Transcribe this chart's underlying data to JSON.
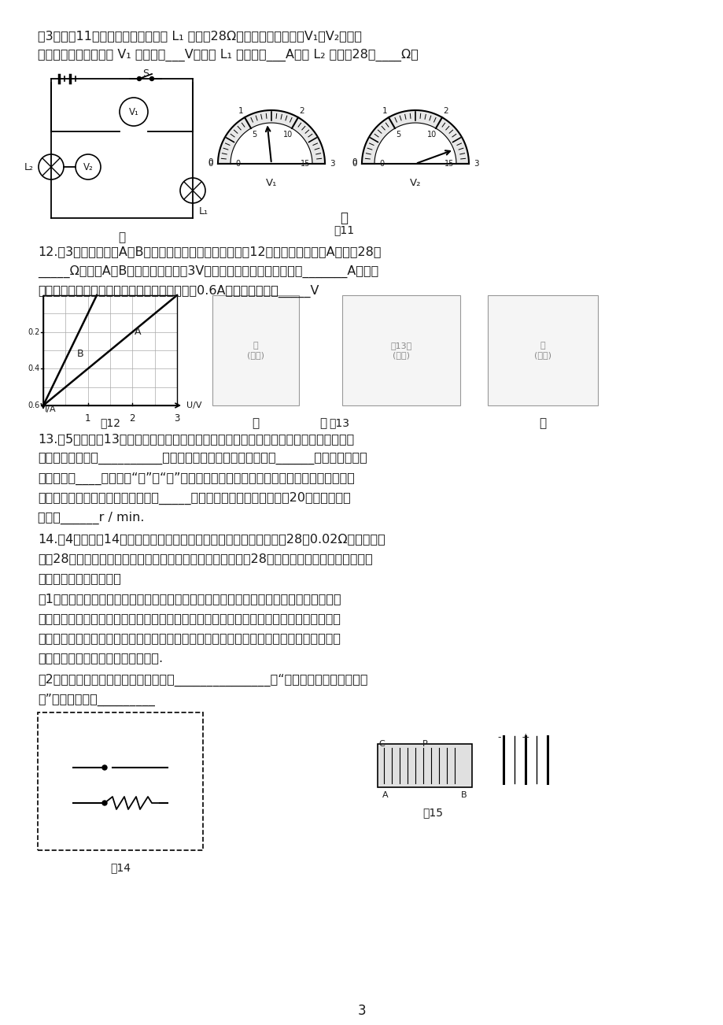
{
  "page_width": 9.2,
  "page_height": 13.02,
  "dpi": 100,
  "bg_color": "#ffffff",
  "text_color": "#1a1a1a",
  "page_number": "3",
  "section3_line1": "（3）如图11甲所示的电路中，电灯 L₁ 的电阶28Ω，开关闭合后，电压V₁、V₂的示数",
  "section3_line2": "分别如图乙，则电压表 V₁ 的示数为___V，，灯 L₁ 的电流为___A，灯 L₂ 的电阶28为____Ω。",
  "q12_line1": "12.（3分）电路元件A和B中的电流与两端电压的关系如图12所示，由图可知，A的电阶28是",
  "q12_line2": "_____Ω。若将A、B串联后接在电压为3V的电源两端，电路中的电流是_______A。若把",
  "q12_line3": "它们并联起来，接在某电源上，电路中的电流是0.6A，则电源电压是_____V",
  "q13_line1": "13.（5分）如图13甲所示装置，向盒内滴入数滴酒精，再将盒盖盖紧，然后拨动电火花发",
  "q13_line2": "生器的按鈕，看到__________，在此过程中，酒精燃烧后燃气的______能转化为盒盖的",
  "q13_line3": "机械能。图____中（选填“乙”或“丙”）汽油机的工作过程与这一实验过程中能量的转化是",
  "q13_line4": "一致的，而图示的另一个工作过程叫_____冲程。如果汽油机每秒钟做功20次，则该机飞",
  "q13_line5": "轮转速______r / min.",
  "q14_line1": "14.（4分）如图14，长距离输电需要两条输电线，每米输电线的电阶28是0.02Ω，距离远，",
  "q14_line2": "电阶28较大。当输电线某处发生短路时，整个输电线路的电阶28会发生改变。这时检修人员若直",
  "q14_line3": "接外出排除故障很费力。",
  "q14_sub1_line1": "（1）小明提出，刚学的欧姆定律可以帮忙。于是他从实验室借来了干电池两节，电流表、",
  "q14_sub1_line2": "电压表、开关各一只，导线若干。也请你利用小明的器材在下面的虚线框内为检修人员设计",
  "q14_sub1_line3": "一个检修电路，可以根据仪表的示数进行有关的计算，以确定输电线短路的位置，便于检修",
  "q14_sub1_line4": "人员迅速赶往短路所在位置排除故障.",
  "q14_sub2_line1": "（2）写出测量物理量及相应的表示符号_______________，“短路点与测量点之间的距",
  "q14_sub2_line2": "离”的表达式为：_________"
}
